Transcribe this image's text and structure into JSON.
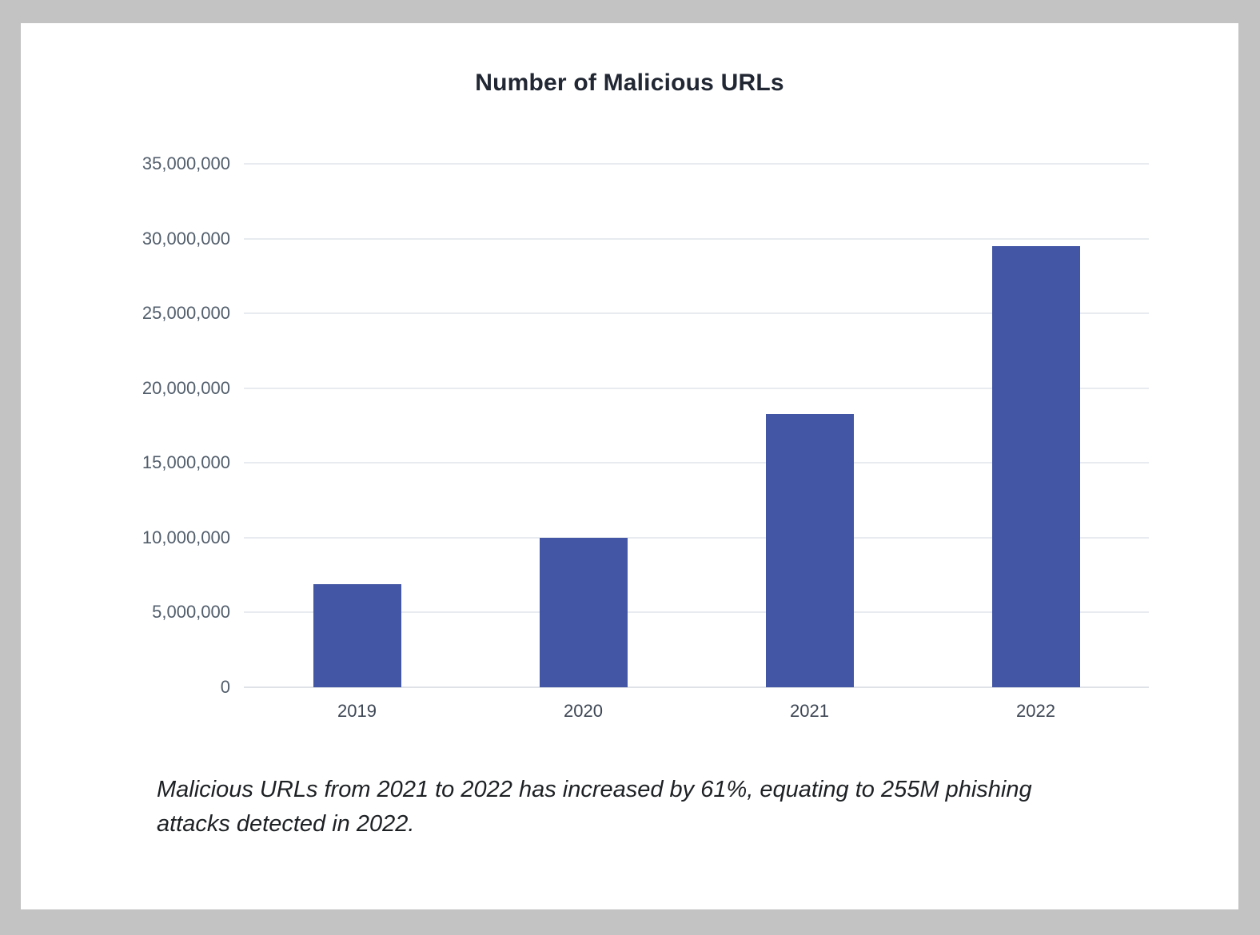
{
  "chart_data": {
    "type": "bar",
    "title": "Number of Malicious URLs",
    "categories": [
      "2019",
      "2020",
      "2021",
      "2022"
    ],
    "values": [
      6900000,
      10000000,
      18300000,
      29500000
    ],
    "xlabel": "",
    "ylabel": "",
    "ylim": [
      0,
      35000000
    ],
    "ytick_step": 5000000,
    "ytick_labels": [
      "0",
      "5,000,000",
      "10,000,000",
      "15,000,000",
      "20,000,000",
      "25,000,000",
      "30,000,000",
      "35,000,000"
    ],
    "grid": true,
    "legend": "none",
    "bar_color": "#4356a5"
  },
  "caption": {
    "lines": [
      "Malicious URLs from 2021 to 2022 has increased by 61%, equating to 255M phishing",
      "attacks detected in 2022."
    ]
  },
  "colors": {
    "canvas_background": "#c3c3c3",
    "card_background": "#ffffff",
    "bar": "#4356a5",
    "gridline": "#e8ebef",
    "baseline": "#dfe3e8",
    "y_axis_label": "#525e6c",
    "x_axis_label": "#3d4654",
    "title_text": "#212733",
    "caption_text": "#1e2124"
  }
}
